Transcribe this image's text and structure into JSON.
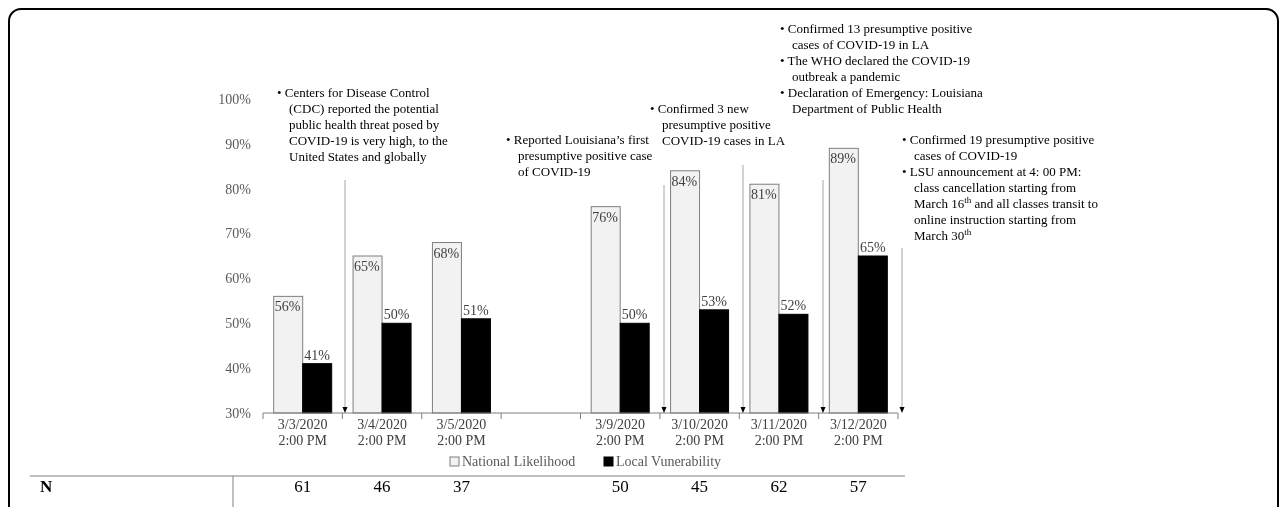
{
  "chart_data": {
    "type": "bar",
    "categories": [
      "3/3/2020\n2:00 PM",
      "3/4/2020\n2:00 PM",
      "3/5/2020\n2:00 PM",
      null,
      "3/9/2020\n2:00 PM",
      "3/10/2020\n2:00 PM",
      "3/11/2020\n2:00 PM",
      "3/12/2020\n2:00 PM"
    ],
    "series": [
      {
        "name": "National Likelihood",
        "color": "#f2f2f2",
        "values": [
          56,
          65,
          68,
          null,
          76,
          84,
          81,
          89
        ],
        "value_labels": [
          "56%",
          "65%",
          "68%",
          null,
          "76%",
          "84%",
          "81%",
          "89%"
        ]
      },
      {
        "name": "Local Vunerability",
        "color": "#000000",
        "values": [
          41,
          50,
          51,
          null,
          50,
          53,
          52,
          65
        ],
        "value_labels": [
          "41%",
          "50%",
          "51%",
          null,
          "50%",
          "53%",
          "52%",
          "65%"
        ]
      }
    ],
    "ylim": [
      30,
      100
    ],
    "yticks": [
      {
        "value": 30,
        "label": "30%"
      },
      {
        "value": 40,
        "label": "40%"
      },
      {
        "value": 50,
        "label": "50%"
      },
      {
        "value": 60,
        "label": "60%"
      },
      {
        "value": 70,
        "label": "70%"
      },
      {
        "value": 80,
        "label": "80%"
      },
      {
        "value": 90,
        "label": "90%"
      },
      {
        "value": 100,
        "label": "100%"
      }
    ],
    "grid": false,
    "legend": "bottom",
    "annotations": [
      "• Centers for Disease Control\n(CDC) reported the potential\npublic health threat posed by\nCOVID-19 is very high, to the\nUnited States and globally",
      "• Reported Louisiana’s first\npresumptive positive case\nof COVID-19",
      "• Confirmed 3 new\npresumptive positive\nCOVID-19 cases in LA",
      "• Confirmed 13 presumptive positive\ncases of COVID-19  in LA",
      "• The WHO declared the COVID-19\noutbreak a pandemic",
      "• Declaration of Emergency: Louisiana\nDepartment of Public Health",
      "• Confirmed 19 presumptive positive\ncases of COVID-19",
      "• LSU announcement at 4: 00 PM:\nclass cancellation starting from\nMarch 16$^{th}$ and all classes transit to\nonline instruction starting from\nMarch 30$^{th}$",
      "N",
      "61",
      "46",
      "37",
      "50",
      "45",
      "62",
      "57"
    ]
  }
}
